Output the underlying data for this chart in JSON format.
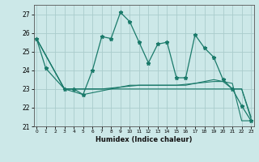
{
  "title": "",
  "xlabel": "Humidex (Indice chaleur)",
  "bg_color": "#cce8e8",
  "grid_color": "#aacccc",
  "line_color": "#1a7a6a",
  "series_main": {
    "x": [
      0,
      1,
      3,
      4,
      5,
      6,
      7,
      8,
      9,
      10,
      11,
      12,
      13,
      14,
      15,
      16,
      17,
      18,
      19,
      20,
      21,
      22,
      23
    ],
    "y": [
      25.7,
      24.1,
      23.0,
      23.0,
      22.7,
      24.0,
      25.8,
      25.7,
      27.1,
      26.6,
      25.5,
      24.4,
      25.4,
      25.5,
      23.6,
      23.6,
      25.9,
      25.2,
      24.7,
      23.5,
      23.0,
      22.1,
      21.3
    ]
  },
  "series_lower1": {
    "x": [
      0,
      3,
      5,
      6,
      7,
      8,
      9,
      10,
      11,
      12,
      13,
      14,
      15,
      16,
      17,
      18,
      19,
      20,
      21,
      22,
      23
    ],
    "y": [
      25.7,
      23.0,
      22.7,
      22.8,
      22.9,
      23.0,
      23.1,
      23.2,
      23.2,
      23.2,
      23.2,
      23.2,
      23.2,
      23.2,
      23.3,
      23.4,
      23.5,
      23.4,
      23.3,
      21.3,
      21.3
    ]
  },
  "series_lower2": {
    "x": [
      0,
      3,
      5,
      6,
      7,
      8,
      9,
      10,
      11,
      12,
      13,
      14,
      15,
      16,
      17,
      18,
      19,
      20,
      21,
      22,
      23
    ],
    "y": [
      25.7,
      23.0,
      23.0,
      23.0,
      23.0,
      23.0,
      23.0,
      23.0,
      23.0,
      23.0,
      23.0,
      23.0,
      23.0,
      23.0,
      23.0,
      23.0,
      23.0,
      23.0,
      23.0,
      23.0,
      21.5
    ]
  },
  "series_lower3": {
    "x": [
      0,
      3,
      5,
      6,
      7,
      8,
      9,
      10,
      11,
      12,
      13,
      14,
      15,
      16,
      17,
      18,
      19,
      20,
      21,
      22,
      23
    ],
    "y": [
      25.7,
      23.0,
      23.0,
      23.0,
      23.0,
      23.05,
      23.1,
      23.15,
      23.2,
      23.2,
      23.2,
      23.2,
      23.2,
      23.25,
      23.3,
      23.35,
      23.4,
      23.4,
      23.0,
      23.0,
      21.4
    ]
  },
  "ylim": [
    21.0,
    27.5
  ],
  "xlim": [
    -0.3,
    23.3
  ],
  "yticks": [
    21,
    22,
    23,
    24,
    25,
    26,
    27
  ],
  "ytick_labels": [
    "21",
    "22",
    "23",
    "24",
    "25",
    "26",
    "27"
  ],
  "xtick_positions": [
    0,
    1,
    2,
    3,
    4,
    5,
    6,
    7,
    8,
    9,
    10,
    11,
    12,
    13,
    14,
    15,
    16,
    17,
    18,
    19,
    20,
    21,
    22,
    23
  ],
  "xtick_labels": [
    "0",
    "1",
    "2",
    "3",
    "4",
    "5",
    "6",
    "7",
    "8",
    "9",
    "10",
    "11",
    "12",
    "13",
    "14",
    "15",
    "16",
    "17",
    "18",
    "19",
    "20",
    "21",
    "22",
    "23"
  ]
}
